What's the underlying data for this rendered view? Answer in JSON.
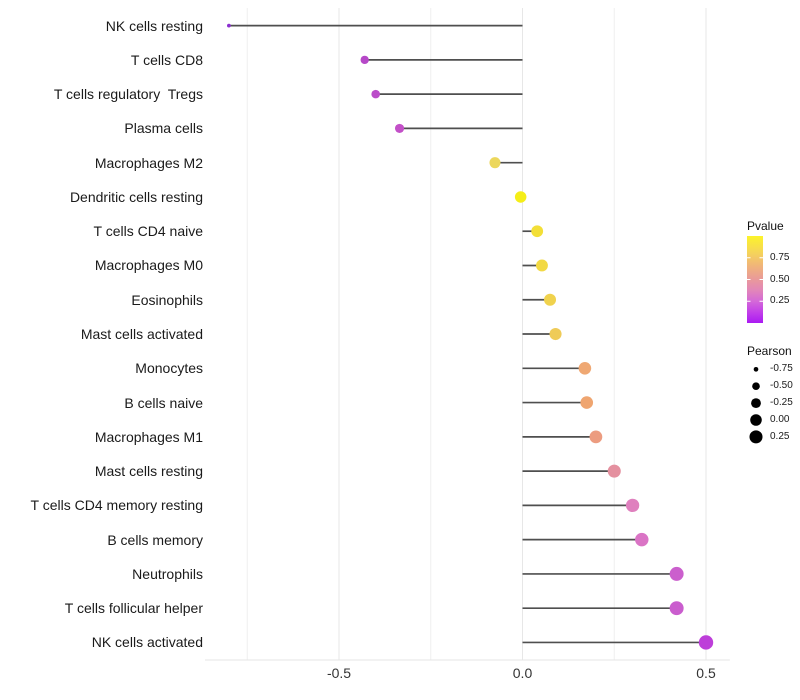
{
  "figure": {
    "background": "#ffffff"
  },
  "chart_data": {
    "type": "scatter",
    "variant": "horizontal-lollipop",
    "title": "",
    "xlabel": "",
    "ylabel": "",
    "xlim": [
      -0.865,
      0.565
    ],
    "x_ticks": [
      {
        "value": -0.5,
        "label": "-0.5"
      },
      {
        "value": 0.0,
        "label": "0.0"
      },
      {
        "value": 0.5,
        "label": "0.5"
      }
    ],
    "x_minor_ticks": [
      -0.75,
      -0.25,
      0.25
    ],
    "grid": "vertical gridlines only, light gray, white background",
    "legend_position": "right",
    "rows": [
      {
        "category": "NK cells resting",
        "pearson": -0.8,
        "pvalue_est": 0.02,
        "color": "#8c2fd0"
      },
      {
        "category": "T cells CD8",
        "pearson": -0.43,
        "pvalue_est": 0.13,
        "color": "#b648c8"
      },
      {
        "category": "T cells regulatory  Tregs",
        "pearson": -0.4,
        "pvalue_est": 0.15,
        "color": "#bb4cc9"
      },
      {
        "category": "Plasma cells",
        "pearson": -0.335,
        "pvalue_est": 0.18,
        "color": "#c350c8"
      },
      {
        "category": "Macrophages M2",
        "pearson": -0.075,
        "pvalue_est": 0.72,
        "color": "#ecd75c"
      },
      {
        "category": "Dendritic cells resting",
        "pearson": -0.005,
        "pvalue_est": 0.97,
        "color": "#f5ee18"
      },
      {
        "category": "T cells CD4 naive",
        "pearson": 0.04,
        "pvalue_est": 0.88,
        "color": "#f3df37"
      },
      {
        "category": "Macrophages M0",
        "pearson": 0.053,
        "pvalue_est": 0.85,
        "color": "#f2d944"
      },
      {
        "category": "Eosinophils",
        "pearson": 0.075,
        "pvalue_est": 0.81,
        "color": "#f0d24d"
      },
      {
        "category": "Mast cells activated",
        "pearson": 0.09,
        "pvalue_est": 0.77,
        "color": "#efcb58"
      },
      {
        "category": "Monocytes",
        "pearson": 0.17,
        "pvalue_est": 0.58,
        "color": "#efa873"
      },
      {
        "category": "B cells naive",
        "pearson": 0.175,
        "pvalue_est": 0.57,
        "color": "#efa570"
      },
      {
        "category": "Macrophages M1",
        "pearson": 0.2,
        "pvalue_est": 0.52,
        "color": "#ec9c80"
      },
      {
        "category": "Mast cells resting",
        "pearson": 0.25,
        "pvalue_est": 0.42,
        "color": "#e4909f"
      },
      {
        "category": "T cells CD4 memory resting",
        "pearson": 0.3,
        "pvalue_est": 0.32,
        "color": "#df80be"
      },
      {
        "category": "B cells memory",
        "pearson": 0.325,
        "pvalue_est": 0.28,
        "color": "#da74c5"
      },
      {
        "category": "Neutrophils",
        "pearson": 0.42,
        "pvalue_est": 0.2,
        "color": "#cb5fcd"
      },
      {
        "category": "T cells follicular helper",
        "pearson": 0.42,
        "pvalue_est": 0.2,
        "color": "#ca5dce"
      },
      {
        "category": "NK cells activated",
        "pearson": 0.5,
        "pvalue_est": 0.11,
        "color": "#bd3ed9"
      }
    ],
    "legend_pvalue": {
      "title": "Pvalue",
      "range": [
        0,
        1
      ],
      "ticks": [
        {
          "value": 0.75,
          "label": "0.75"
        },
        {
          "value": 0.5,
          "label": "0.50"
        },
        {
          "value": 0.25,
          "label": "0.25"
        }
      ],
      "gradient_stops": [
        {
          "offset": 0.0,
          "color": "#fcf42a"
        },
        {
          "offset": 0.2,
          "color": "#f5d25c"
        },
        {
          "offset": 0.35,
          "color": "#f0b37b"
        },
        {
          "offset": 0.5,
          "color": "#e9999b"
        },
        {
          "offset": 0.62,
          "color": "#e287b8"
        },
        {
          "offset": 0.75,
          "color": "#d469d8"
        },
        {
          "offset": 0.88,
          "color": "#c13ee9"
        },
        {
          "offset": 1.0,
          "color": "#aa1af2"
        }
      ]
    },
    "legend_pearson": {
      "title": "Pearson",
      "dot_color": "#000000",
      "entries": [
        {
          "value": -0.75,
          "label": "-0.75"
        },
        {
          "value": -0.5,
          "label": "-0.50"
        },
        {
          "value": -0.25,
          "label": "-0.25"
        },
        {
          "value": 0.0,
          "label": "0.00"
        },
        {
          "value": 0.25,
          "label": "0.25"
        }
      ]
    }
  },
  "colors": {
    "stick": "#4f4f4f",
    "grid_major": "#e7e7e7",
    "grid_minor": "#efefef",
    "axis_bottom_line": "#e4e4e4",
    "axis_text": "#333333",
    "category_text": "#1a1a1a",
    "legend_text": "#1a1a1a"
  }
}
